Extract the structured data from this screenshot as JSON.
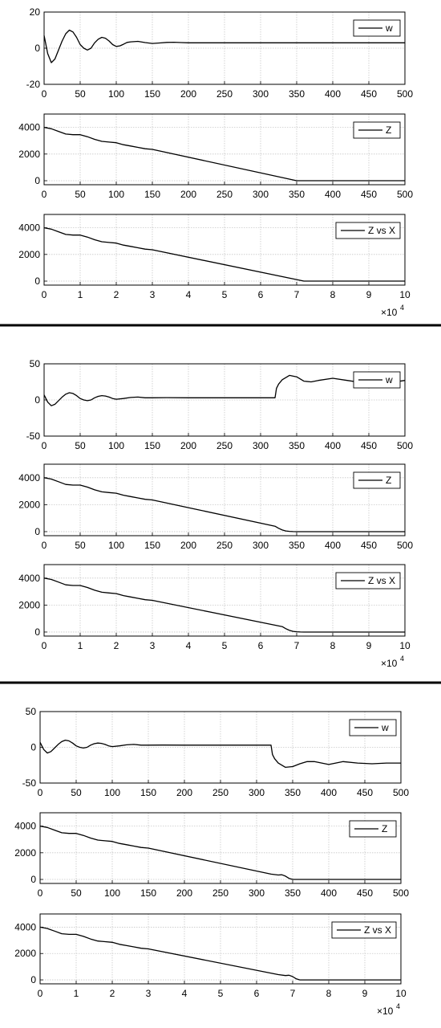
{
  "chart_data": [
    {
      "type": "line",
      "group": 1,
      "series": [
        {
          "name": "w",
          "x": [
            0,
            5,
            10,
            15,
            20,
            25,
            30,
            35,
            40,
            45,
            50,
            55,
            60,
            65,
            70,
            75,
            80,
            85,
            90,
            95,
            100,
            105,
            110,
            115,
            120,
            130,
            140,
            150,
            160,
            170,
            180,
            190,
            200,
            220,
            250,
            300,
            350,
            400,
            450,
            500
          ],
          "y": [
            7,
            -3,
            -8,
            -6,
            -1,
            4,
            8,
            10,
            9,
            6,
            2,
            0,
            -1,
            0,
            3,
            5,
            6,
            5.5,
            4,
            2,
            1,
            1.3,
            2.2,
            3.2,
            3.5,
            3.8,
            3.1,
            2.6,
            2.9,
            3.2,
            3.3,
            3.1,
            3.0,
            3.0,
            3.0,
            3.0,
            3.0,
            3.0,
            3.0,
            3.0
          ]
        }
      ],
      "xlim": [
        0,
        500
      ],
      "ylim": [
        -20,
        20
      ],
      "xticks": [
        "0",
        "50",
        "100",
        "150",
        "200",
        "250",
        "300",
        "350",
        "400",
        "450",
        "500"
      ],
      "yticks": [
        "-20",
        "0",
        "20"
      ],
      "grid": true,
      "legend": "top-right"
    },
    {
      "type": "line",
      "group": 1,
      "series": [
        {
          "name": "Z",
          "x": [
            0,
            10,
            20,
            30,
            40,
            50,
            60,
            70,
            80,
            90,
            100,
            110,
            120,
            130,
            140,
            150,
            350,
            360,
            400,
            450,
            500
          ],
          "y": [
            4000,
            3900,
            3700,
            3500,
            3450,
            3450,
            3300,
            3100,
            2950,
            2900,
            2850,
            2700,
            2600,
            2500,
            2400,
            2350,
            0,
            0,
            0,
            0,
            0
          ]
        }
      ],
      "xlim": [
        0,
        500
      ],
      "ylim": [
        -300,
        5000
      ],
      "xticks": [
        "0",
        "50",
        "100",
        "150",
        "200",
        "250",
        "300",
        "350",
        "400",
        "450",
        "500"
      ],
      "yticks": [
        "0",
        "2000",
        "4000"
      ],
      "grid": true,
      "legend": "top-right"
    },
    {
      "type": "line",
      "group": 1,
      "series": [
        {
          "name": "Z vs X",
          "x": [
            0,
            0.2,
            0.4,
            0.6,
            0.8,
            1.0,
            1.2,
            1.4,
            1.6,
            1.8,
            2.0,
            2.2,
            2.4,
            2.6,
            2.8,
            3.0,
            7.2,
            7.4,
            8,
            9,
            10
          ],
          "y": [
            4000,
            3900,
            3700,
            3500,
            3450,
            3450,
            3300,
            3100,
            2950,
            2900,
            2850,
            2700,
            2600,
            2500,
            2400,
            2350,
            0,
            0,
            0,
            0,
            0
          ]
        }
      ],
      "xlim": [
        0,
        10
      ],
      "ylim": [
        -300,
        5000
      ],
      "xticks": [
        "0",
        "1",
        "2",
        "3",
        "4",
        "5",
        "6",
        "7",
        "8",
        "9",
        "10"
      ],
      "yticks": [
        "0",
        "2000",
        "4000"
      ],
      "x_multiplier": "×10",
      "x_exponent": "4",
      "grid": true,
      "legend": "top-right"
    },
    {
      "type": "line",
      "group": 2,
      "series": [
        {
          "name": "w",
          "x": [
            0,
            5,
            10,
            15,
            20,
            25,
            30,
            35,
            40,
            45,
            50,
            55,
            60,
            65,
            70,
            75,
            80,
            85,
            90,
            95,
            100,
            110,
            120,
            130,
            140,
            150,
            170,
            200,
            250,
            300,
            320,
            322,
            325,
            330,
            340,
            350,
            360,
            370,
            380,
            400,
            420,
            440,
            460,
            480,
            500
          ],
          "y": [
            7,
            -3,
            -8,
            -6,
            -1,
            4,
            8,
            10,
            9,
            6,
            2,
            0,
            -1,
            0,
            3,
            5,
            6,
            5.5,
            4,
            2,
            1,
            2,
            3.5,
            4,
            3,
            3,
            3.2,
            3,
            3,
            3,
            3,
            16,
            22,
            28,
            34,
            32,
            26,
            25,
            27,
            30,
            27,
            24,
            26,
            24,
            27
          ]
        }
      ],
      "xlim": [
        0,
        500
      ],
      "ylim": [
        -50,
        50
      ],
      "xticks": [
        "0",
        "50",
        "100",
        "150",
        "200",
        "250",
        "300",
        "350",
        "400",
        "450",
        "500"
      ],
      "yticks": [
        "-50",
        "0",
        "50"
      ],
      "grid": true,
      "legend": "top-right"
    },
    {
      "type": "line",
      "group": 2,
      "series": [
        {
          "name": "Z",
          "x": [
            0,
            10,
            20,
            30,
            40,
            50,
            60,
            70,
            80,
            90,
            100,
            110,
            120,
            130,
            140,
            150,
            320,
            325,
            330,
            335,
            340,
            345,
            350,
            360,
            400,
            450,
            500
          ],
          "y": [
            4000,
            3900,
            3700,
            3500,
            3450,
            3450,
            3300,
            3100,
            2950,
            2900,
            2850,
            2700,
            2600,
            2500,
            2400,
            2350,
            400,
            250,
            120,
            50,
            20,
            5,
            0,
            0,
            0,
            0,
            0
          ]
        }
      ],
      "xlim": [
        0,
        500
      ],
      "ylim": [
        -300,
        5000
      ],
      "xticks": [
        "0",
        "50",
        "100",
        "150",
        "200",
        "250",
        "300",
        "350",
        "400",
        "450",
        "500"
      ],
      "yticks": [
        "0",
        "2000",
        "4000"
      ],
      "grid": true,
      "legend": "top-right"
    },
    {
      "type": "line",
      "group": 2,
      "series": [
        {
          "name": "Z vs X",
          "x": [
            0,
            0.2,
            0.4,
            0.6,
            0.8,
            1.0,
            1.2,
            1.4,
            1.6,
            1.8,
            2.0,
            2.2,
            2.4,
            2.6,
            2.8,
            3.0,
            6.6,
            6.7,
            6.8,
            6.9,
            7.0,
            7.1,
            7.2,
            7.5,
            8,
            9,
            10
          ],
          "y": [
            4000,
            3900,
            3700,
            3500,
            3450,
            3450,
            3300,
            3100,
            2950,
            2900,
            2850,
            2700,
            2600,
            2500,
            2400,
            2350,
            400,
            250,
            120,
            50,
            20,
            5,
            0,
            0,
            0,
            0,
            0
          ]
        }
      ],
      "xlim": [
        0,
        10
      ],
      "ylim": [
        -300,
        5000
      ],
      "xticks": [
        "0",
        "1",
        "2",
        "3",
        "4",
        "5",
        "6",
        "7",
        "8",
        "9",
        "10"
      ],
      "yticks": [
        "0",
        "2000",
        "4000"
      ],
      "x_multiplier": "×10",
      "x_exponent": "4",
      "grid": true,
      "legend": "top-right"
    },
    {
      "type": "line",
      "group": 3,
      "series": [
        {
          "name": "w",
          "x": [
            0,
            5,
            10,
            15,
            20,
            25,
            30,
            35,
            40,
            45,
            50,
            55,
            60,
            65,
            70,
            75,
            80,
            85,
            90,
            95,
            100,
            110,
            120,
            130,
            140,
            150,
            170,
            200,
            250,
            300,
            320,
            322,
            325,
            330,
            340,
            350,
            360,
            370,
            380,
            400,
            420,
            440,
            460,
            480,
            500
          ],
          "y": [
            7,
            -3,
            -8,
            -6,
            -1,
            4,
            8,
            10,
            9,
            6,
            2,
            0,
            -1,
            0,
            3,
            5,
            6,
            5.5,
            4,
            2,
            1,
            2,
            3.5,
            4,
            3,
            3,
            3.2,
            3,
            3,
            3,
            3,
            -10,
            -16,
            -22,
            -28,
            -27,
            -23,
            -20,
            -20,
            -24,
            -20,
            -22,
            -23,
            -22,
            -22
          ]
        }
      ],
      "xlim": [
        0,
        500
      ],
      "ylim": [
        -50,
        50
      ],
      "xticks": [
        "0",
        "50",
        "100",
        "150",
        "200",
        "250",
        "300",
        "350",
        "400",
        "450",
        "500"
      ],
      "yticks": [
        "-50",
        "0",
        "50"
      ],
      "grid": true,
      "legend": "top-right"
    },
    {
      "type": "line",
      "group": 3,
      "series": [
        {
          "name": "Z",
          "x": [
            0,
            10,
            20,
            30,
            40,
            50,
            60,
            70,
            80,
            90,
            100,
            110,
            120,
            130,
            140,
            150,
            320,
            330,
            335,
            340,
            345,
            350,
            360,
            400,
            450,
            500
          ],
          "y": [
            4000,
            3900,
            3700,
            3500,
            3450,
            3450,
            3300,
            3100,
            2950,
            2900,
            2850,
            2700,
            2600,
            2500,
            2400,
            2350,
            400,
            330,
            350,
            250,
            80,
            0,
            0,
            0,
            0,
            0
          ]
        }
      ],
      "xlim": [
        0,
        500
      ],
      "ylim": [
        -300,
        5000
      ],
      "xticks": [
        "0",
        "50",
        "100",
        "150",
        "200",
        "250",
        "300",
        "350",
        "400",
        "450",
        "500"
      ],
      "yticks": [
        "0",
        "2000",
        "4000"
      ],
      "grid": true,
      "legend": "top-right"
    },
    {
      "type": "line",
      "group": 3,
      "series": [
        {
          "name": "Z vs X",
          "x": [
            0,
            0.2,
            0.4,
            0.6,
            0.8,
            1.0,
            1.2,
            1.4,
            1.6,
            1.8,
            2.0,
            2.2,
            2.4,
            2.6,
            2.8,
            3.0,
            6.6,
            6.8,
            6.9,
            7.0,
            7.1,
            7.2,
            7.5,
            8,
            9,
            10
          ],
          "y": [
            4000,
            3900,
            3700,
            3500,
            3450,
            3450,
            3300,
            3100,
            2950,
            2900,
            2850,
            2700,
            2600,
            2500,
            2400,
            2350,
            400,
            330,
            350,
            250,
            80,
            0,
            0,
            0,
            0,
            0
          ]
        }
      ],
      "xlim": [
        0,
        10
      ],
      "ylim": [
        -300,
        5000
      ],
      "xticks": [
        "0",
        "1",
        "2",
        "3",
        "4",
        "5",
        "6",
        "7",
        "8",
        "9",
        "10"
      ],
      "yticks": [
        "0",
        "2000",
        "4000"
      ],
      "x_multiplier": "×10",
      "x_exponent": "4",
      "grid": true,
      "legend": "top-right"
    }
  ]
}
